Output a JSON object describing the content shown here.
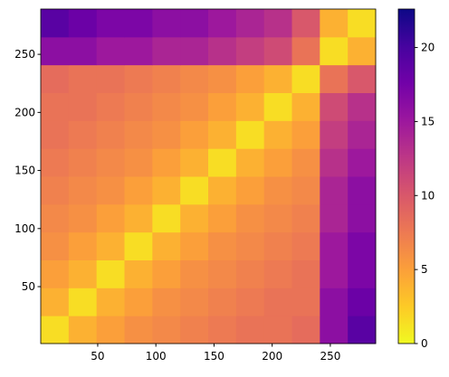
{
  "chart_data": {
    "type": "heatmap",
    "x_edges": [
      1,
      25,
      49,
      73,
      97,
      121,
      145,
      169,
      193,
      217,
      241,
      265,
      289
    ],
    "y_edges": [
      1,
      25,
      49,
      73,
      97,
      121,
      145,
      169,
      193,
      217,
      241,
      265,
      289
    ],
    "values": [
      [
        1.5,
        4,
        5,
        6,
        6.5,
        7,
        7.5,
        8,
        8,
        8.5,
        16,
        19
      ],
      [
        4,
        1.5,
        4,
        5,
        6,
        6.5,
        7,
        7.5,
        8,
        8,
        16,
        18
      ],
      [
        5,
        4,
        1.5,
        4,
        5,
        6,
        6.5,
        7,
        7.5,
        8,
        15,
        17
      ],
      [
        6,
        5,
        4,
        1.5,
        4,
        5,
        6,
        6.5,
        7,
        7.5,
        15,
        17
      ],
      [
        6.5,
        6,
        5,
        4,
        1.5,
        4,
        5,
        6,
        6.5,
        7,
        14,
        16
      ],
      [
        7,
        6.5,
        6,
        5,
        4,
        1.5,
        4,
        5,
        6,
        6.5,
        14,
        16
      ],
      [
        7.5,
        7,
        6.5,
        6,
        5,
        4,
        1.5,
        4,
        5,
        6,
        13,
        15
      ],
      [
        8,
        7.5,
        7,
        6.5,
        6,
        5,
        4,
        1.5,
        4,
        5,
        12,
        14
      ],
      [
        8,
        8,
        7.5,
        7,
        6.5,
        6,
        5,
        4,
        1.5,
        4,
        11,
        13
      ],
      [
        8.5,
        8,
        8,
        7.5,
        7,
        6.5,
        6,
        5,
        4,
        1.5,
        8,
        10
      ],
      [
        16,
        16,
        15,
        15,
        14,
        14,
        13,
        12,
        11,
        8,
        1.5,
        4
      ],
      [
        19,
        18,
        17,
        17,
        16,
        16,
        15,
        14,
        13,
        10,
        4,
        1.5
      ]
    ],
    "xlim": [
      1,
      289
    ],
    "ylim": [
      1,
      289
    ],
    "xticks": [
      50,
      100,
      150,
      200,
      250
    ],
    "yticks": [
      50,
      100,
      150,
      200,
      250
    ],
    "clim": [
      0,
      22.6
    ],
    "cticks": [
      0,
      5,
      10,
      15,
      20
    ],
    "colormap": [
      "#f0f921",
      "#fdca26",
      "#fb9f3a",
      "#ed7953",
      "#d8576b",
      "#bd3786",
      "#9c179e",
      "#7201a8",
      "#46039f",
      "#0d0887"
    ]
  }
}
